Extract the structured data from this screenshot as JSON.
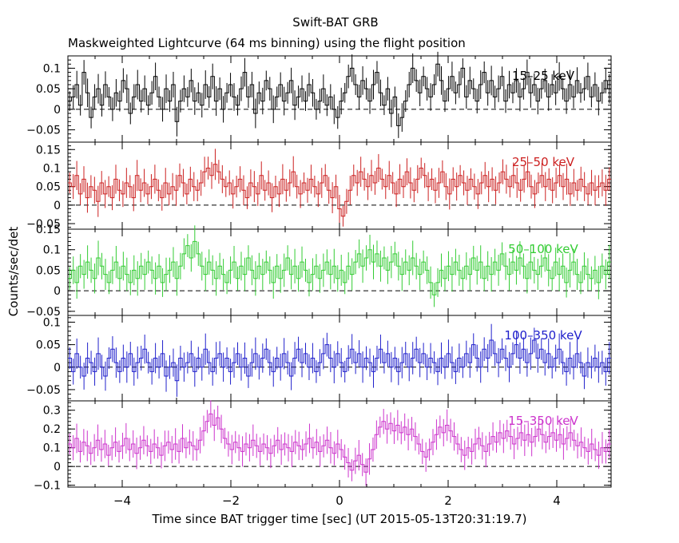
{
  "title": "Swift-BAT GRB",
  "subtitle": "Maskweighted Lightcurve (64 ms binning) using the flight position",
  "ylabel": "Counts/sec/det",
  "xlabel": "Time since BAT trigger time [sec] (UT 2015-05-13T20:31:19.7)",
  "chart_data": {
    "type": "line",
    "step": true,
    "bin_seconds": 0.064,
    "xlim": [
      -5.0,
      5.0
    ],
    "x_ticks": [
      -4,
      -2,
      0,
      2,
      4
    ],
    "x_tick_labels": [
      "−4",
      "−2",
      "0",
      "2",
      "4"
    ],
    "panels": [
      {
        "band": "15–25 keV",
        "color": "#000000",
        "ylim": [
          -0.08,
          0.13
        ],
        "y_ticks": [
          -0.05,
          0,
          0.05,
          0.1
        ],
        "y_tick_labels": [
          "−0.05",
          "0",
          "0.05",
          "0.1"
        ],
        "minor_step": 0.01,
        "err": 0.03,
        "baseline": 0.02,
        "values": [
          0.02,
          0.03,
          0.06,
          0.01,
          0.09,
          0.04,
          -0.02,
          0.03,
          0.05,
          0.01,
          0.06,
          0.03,
          0.0,
          0.04,
          0.02,
          0.07,
          0.05,
          -0.01,
          0.03,
          0.06,
          0.02,
          0.05,
          0.01,
          0.04,
          0.08,
          0.03,
          0.0,
          0.05,
          0.02,
          0.06,
          -0.03,
          0.02,
          0.05,
          0.03,
          0.07,
          0.02,
          0.04,
          0.01,
          0.06,
          0.03,
          0.08,
          0.02,
          0.05,
          0.0,
          0.04,
          0.06,
          0.03,
          0.01,
          0.05,
          0.09,
          0.03,
          0.06,
          -0.01,
          0.04,
          0.02,
          0.07,
          0.05,
          0.0,
          0.03,
          0.06,
          0.02,
          0.04,
          0.07,
          0.01,
          0.03,
          0.05,
          0.02,
          0.06,
          0.04,
          0.0,
          0.02,
          0.05,
          0.01,
          0.03,
          0.0,
          -0.02,
          0.02,
          0.04,
          0.08,
          0.1,
          0.06,
          0.03,
          0.07,
          0.05,
          0.02,
          0.06,
          0.09,
          0.04,
          0.01,
          0.05,
          -0.01,
          0.03,
          -0.04,
          -0.02,
          0.02,
          0.06,
          0.1,
          0.07,
          0.04,
          0.08,
          0.05,
          0.03,
          0.06,
          0.11,
          0.07,
          0.02,
          0.05,
          0.08,
          0.04,
          0.06,
          0.1,
          0.03,
          0.07,
          0.05,
          0.02,
          0.06,
          0.09,
          0.04,
          0.07,
          0.03,
          0.05,
          0.08,
          0.02,
          0.06,
          0.04,
          0.07,
          0.03,
          0.05,
          0.09,
          0.04,
          0.06,
          0.02,
          0.05,
          0.07,
          0.03,
          0.06,
          0.04,
          0.08,
          0.05,
          0.02,
          0.06,
          0.03,
          0.07,
          0.04,
          0.05,
          0.08,
          0.03,
          0.06,
          0.02,
          0.04,
          0.07,
          0.05
        ]
      },
      {
        "band": "25–50 keV",
        "color": "#cc2020",
        "ylim": [
          -0.065,
          0.17
        ],
        "y_ticks": [
          -0.05,
          0,
          0.05,
          0.1,
          0.15
        ],
        "y_tick_labels": [
          "−0.05",
          "0",
          "0.05",
          "0.1",
          "0.15"
        ],
        "minor_step": 0.01,
        "err": 0.035,
        "baseline": 0.04,
        "values": [
          0.06,
          0.05,
          0.08,
          0.03,
          0.07,
          0.02,
          0.05,
          0.04,
          0.01,
          0.06,
          0.03,
          0.05,
          0.02,
          0.07,
          0.04,
          0.03,
          0.06,
          0.05,
          0.02,
          0.08,
          0.04,
          0.06,
          0.03,
          0.05,
          0.07,
          0.04,
          0.02,
          0.06,
          0.03,
          0.05,
          0.04,
          0.08,
          0.06,
          0.03,
          0.07,
          0.05,
          0.04,
          0.06,
          0.09,
          0.1,
          0.08,
          0.11,
          0.09,
          0.07,
          0.05,
          0.06,
          0.03,
          0.05,
          0.07,
          0.04,
          0.02,
          0.06,
          0.05,
          0.03,
          0.08,
          0.04,
          0.06,
          0.02,
          0.05,
          0.03,
          0.07,
          0.04,
          0.06,
          0.09,
          0.05,
          0.03,
          0.06,
          0.04,
          0.07,
          0.05,
          0.03,
          0.06,
          0.08,
          0.04,
          0.02,
          0.05,
          -0.01,
          -0.03,
          0.01,
          0.04,
          0.08,
          0.06,
          0.09,
          0.07,
          0.05,
          0.08,
          0.06,
          0.1,
          0.07,
          0.05,
          0.08,
          0.06,
          0.03,
          0.07,
          0.05,
          0.09,
          0.06,
          0.04,
          0.07,
          0.1,
          0.08,
          0.05,
          0.07,
          0.04,
          0.06,
          0.09,
          0.05,
          0.03,
          0.07,
          0.05,
          0.08,
          0.06,
          0.04,
          0.07,
          0.05,
          0.03,
          0.06,
          0.08,
          0.05,
          0.07,
          0.04,
          0.06,
          0.09,
          0.07,
          0.05,
          0.08,
          0.06,
          0.04,
          0.07,
          0.09,
          0.05,
          0.03,
          0.06,
          0.08,
          0.05,
          0.07,
          0.04,
          0.06,
          0.08,
          0.05,
          0.07,
          0.03,
          0.06,
          0.04,
          0.07,
          0.05,
          0.03,
          0.06,
          0.04,
          0.05,
          0.06,
          0.04,
          0.07
        ]
      },
      {
        "band": "50–100 keV",
        "color": "#33cc33",
        "ylim": [
          -0.06,
          0.15
        ],
        "y_ticks": [
          -0.05,
          0,
          0.05,
          0.1,
          0.15
        ],
        "y_tick_labels": [
          "−0.05",
          "0",
          "0.05",
          "0.1",
          "0.15"
        ],
        "minor_step": 0.01,
        "err": 0.035,
        "baseline": 0.04,
        "values": [
          0.03,
          0.05,
          0.02,
          0.06,
          0.04,
          0.07,
          0.05,
          0.03,
          0.08,
          0.06,
          0.04,
          0.02,
          0.05,
          0.07,
          0.03,
          0.06,
          0.04,
          0.02,
          0.05,
          0.03,
          0.06,
          0.04,
          0.07,
          0.05,
          0.03,
          0.06,
          0.02,
          0.04,
          0.05,
          0.07,
          0.03,
          0.06,
          0.09,
          0.11,
          0.08,
          0.12,
          0.09,
          0.06,
          0.04,
          0.07,
          0.05,
          0.03,
          0.06,
          0.04,
          0.02,
          0.05,
          0.07,
          0.03,
          0.06,
          0.04,
          0.08,
          0.05,
          0.03,
          0.06,
          0.04,
          0.07,
          0.05,
          0.02,
          0.06,
          0.03,
          0.05,
          0.08,
          0.04,
          0.06,
          0.03,
          0.07,
          0.05,
          0.02,
          0.04,
          0.06,
          0.03,
          0.05,
          0.07,
          0.04,
          0.06,
          0.03,
          0.05,
          0.02,
          0.06,
          0.04,
          0.07,
          0.09,
          0.06,
          0.08,
          0.1,
          0.07,
          0.09,
          0.06,
          0.08,
          0.05,
          0.07,
          0.09,
          0.06,
          0.04,
          0.07,
          0.05,
          0.08,
          0.06,
          0.04,
          0.07,
          0.05,
          0.02,
          -0.01,
          0.02,
          0.05,
          0.03,
          0.06,
          0.04,
          0.07,
          0.05,
          0.03,
          0.06,
          0.04,
          0.08,
          0.05,
          0.07,
          0.03,
          0.06,
          0.04,
          0.07,
          0.05,
          0.09,
          0.06,
          0.04,
          0.07,
          0.05,
          0.08,
          0.06,
          0.03,
          0.07,
          0.05,
          0.04,
          0.06,
          0.08,
          0.05,
          0.03,
          0.07,
          0.04,
          0.06,
          0.02,
          0.05,
          0.07,
          0.04,
          0.02,
          0.06,
          0.04,
          0.03,
          0.05,
          0.02,
          0.06,
          0.04,
          0.07
        ]
      },
      {
        "band": "100–350 keV",
        "color": "#2020cc",
        "ylim": [
          -0.075,
          0.115
        ],
        "y_ticks": [
          -0.05,
          0,
          0.05,
          0.1
        ],
        "y_tick_labels": [
          "−0.05",
          "0",
          "0.05",
          "0.1"
        ],
        "minor_step": 0.01,
        "err": 0.03,
        "baseline": 0.01,
        "values": [
          0.02,
          -0.01,
          0.03,
          0.0,
          -0.02,
          0.02,
          0.01,
          -0.01,
          0.03,
          0.0,
          -0.02,
          0.02,
          0.04,
          0.01,
          -0.01,
          0.02,
          0.0,
          0.03,
          -0.01,
          0.01,
          0.02,
          0.04,
          0.01,
          -0.01,
          0.02,
          0.0,
          0.03,
          -0.02,
          0.0,
          0.01,
          -0.03,
          0.02,
          0.0,
          0.01,
          0.03,
          -0.01,
          0.02,
          0.0,
          0.04,
          0.01,
          -0.01,
          0.02,
          0.03,
          0.0,
          0.02,
          -0.01,
          0.01,
          0.03,
          0.0,
          0.02,
          -0.02,
          0.01,
          0.03,
          0.0,
          0.02,
          0.04,
          0.01,
          -0.01,
          0.02,
          0.0,
          0.03,
          0.01,
          -0.02,
          0.02,
          0.04,
          0.01,
          0.03,
          0.0,
          0.02,
          -0.01,
          0.01,
          0.03,
          0.05,
          0.02,
          0.0,
          0.03,
          0.01,
          -0.01,
          0.02,
          0.04,
          0.01,
          0.03,
          0.0,
          0.02,
          0.01,
          -0.01,
          0.02,
          0.04,
          0.01,
          0.03,
          0.0,
          0.02,
          -0.01,
          0.01,
          0.03,
          0.0,
          0.02,
          0.04,
          0.01,
          0.03,
          0.0,
          0.02,
          0.01,
          -0.01,
          0.02,
          0.0,
          0.03,
          0.01,
          -0.01,
          0.02,
          0.0,
          0.03,
          0.01,
          0.05,
          0.02,
          0.0,
          0.04,
          0.02,
          0.06,
          0.03,
          0.01,
          0.04,
          0.02,
          0.0,
          0.03,
          0.05,
          0.02,
          0.04,
          0.01,
          0.03,
          0.06,
          0.02,
          0.04,
          0.01,
          0.03,
          0.0,
          0.02,
          0.04,
          0.01,
          -0.01,
          0.02,
          0.0,
          0.03,
          0.01,
          -0.02,
          0.01,
          0.0,
          0.02,
          0.0,
          0.01,
          -0.01,
          0.02
        ]
      },
      {
        "band": "15–350 keV",
        "color": "#cc33cc",
        "ylim": [
          -0.11,
          0.35
        ],
        "y_ticks": [
          -0.1,
          0,
          0.1,
          0.2,
          0.3
        ],
        "y_tick_labels": [
          "−0.1",
          "0",
          "0.1",
          "0.2",
          "0.3"
        ],
        "minor_step": 0.02,
        "err": 0.07,
        "baseline": 0.12,
        "values": [
          0.12,
          0.1,
          0.15,
          0.08,
          0.13,
          0.11,
          0.07,
          0.1,
          0.14,
          0.09,
          0.12,
          0.06,
          0.1,
          0.13,
          0.08,
          0.11,
          0.15,
          0.09,
          0.12,
          0.07,
          0.1,
          0.14,
          0.11,
          0.08,
          0.12,
          0.1,
          0.06,
          0.11,
          0.13,
          0.09,
          0.12,
          0.08,
          0.15,
          0.1,
          0.13,
          0.11,
          0.09,
          0.14,
          0.19,
          0.24,
          0.28,
          0.22,
          0.26,
          0.2,
          0.15,
          0.12,
          0.09,
          0.13,
          0.1,
          0.08,
          0.12,
          0.1,
          0.14,
          0.11,
          0.08,
          0.12,
          0.1,
          0.07,
          0.11,
          0.14,
          0.09,
          0.12,
          0.1,
          0.08,
          0.13,
          0.11,
          0.09,
          0.12,
          0.15,
          0.1,
          0.13,
          0.08,
          0.11,
          0.14,
          0.1,
          0.07,
          0.12,
          0.09,
          0.05,
          0.02,
          -0.02,
          0.03,
          0.06,
          0.01,
          -0.03,
          0.04,
          0.09,
          0.17,
          0.21,
          0.24,
          0.2,
          0.23,
          0.19,
          0.22,
          0.18,
          0.21,
          0.17,
          0.2,
          0.16,
          0.12,
          0.08,
          0.05,
          0.09,
          0.13,
          0.17,
          0.21,
          0.18,
          0.22,
          0.19,
          0.16,
          0.12,
          0.09,
          0.06,
          0.1,
          0.08,
          0.12,
          0.15,
          0.11,
          0.08,
          0.12,
          0.16,
          0.13,
          0.18,
          0.15,
          0.19,
          0.16,
          0.12,
          0.15,
          0.18,
          0.14,
          0.17,
          0.13,
          0.16,
          0.2,
          0.17,
          0.13,
          0.16,
          0.18,
          0.14,
          0.17,
          0.12,
          0.15,
          0.18,
          0.14,
          0.11,
          0.13,
          0.1,
          0.08,
          0.12,
          0.09,
          0.06,
          0.1,
          0.08,
          0.12
        ]
      }
    ]
  }
}
